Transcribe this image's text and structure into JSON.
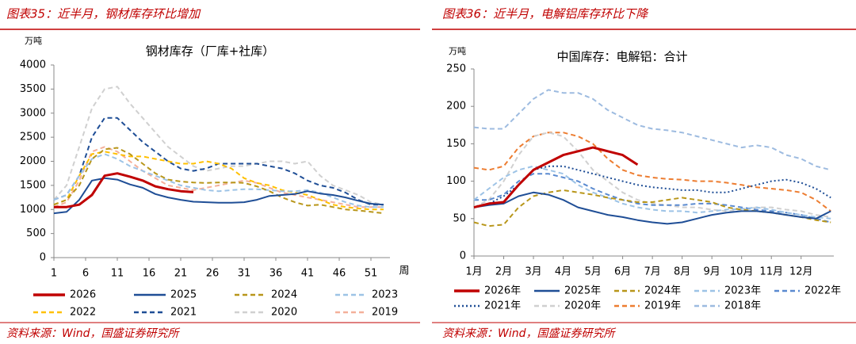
{
  "chart_data": [
    {
      "type": "line",
      "caption": "图表35：近半月，钢材库存环比增加",
      "source": "资料来源：Wind，国盛证券研究所",
      "title": "钢材库存（厂库+社库）",
      "y_label": "万吨",
      "x_label": "周",
      "grid": false,
      "xlim": [
        1,
        54
      ],
      "xticks": [
        1,
        6,
        11,
        16,
        21,
        26,
        31,
        36,
        41,
        46,
        51
      ],
      "ylim": [
        0,
        4000
      ],
      "yticks": [
        0,
        500,
        1000,
        1500,
        2000,
        2500,
        3000,
        3500,
        4000
      ],
      "x": [
        1,
        3,
        5,
        7,
        9,
        11,
        13,
        15,
        17,
        19,
        21,
        23,
        25,
        27,
        29,
        31,
        33,
        35,
        37,
        39,
        41,
        43,
        45,
        47,
        49,
        51,
        53
      ],
      "series": [
        {
          "name": "2026",
          "color": "#c00000",
          "width": 3,
          "dash": "solid",
          "values": [
            1050,
            1050,
            1100,
            1300,
            1700,
            1750,
            1680,
            1600,
            1480,
            1420,
            1380,
            1360,
            null,
            null,
            null,
            null,
            null,
            null,
            null,
            null,
            null,
            null,
            null,
            null,
            null,
            null,
            null
          ]
        },
        {
          "name": "2025",
          "color": "#1f4e96",
          "width": 2,
          "dash": "solid",
          "values": [
            920,
            950,
            1200,
            1600,
            1650,
            1620,
            1520,
            1450,
            1320,
            1250,
            1200,
            1160,
            1150,
            1140,
            1140,
            1150,
            1200,
            1280,
            1300,
            1320,
            1380,
            1330,
            1300,
            1250,
            1180,
            1120,
            1100
          ]
        },
        {
          "name": "2024",
          "color": "#b8961a",
          "width": 2,
          "dash": "dashed",
          "values": [
            1100,
            1200,
            1500,
            2050,
            2250,
            2280,
            2150,
            1950,
            1750,
            1620,
            1580,
            1560,
            1550,
            1560,
            1560,
            1550,
            1480,
            1380,
            1250,
            1150,
            1080,
            1100,
            1050,
            1000,
            980,
            950,
            920
          ]
        },
        {
          "name": "2023",
          "color": "#9dc3e6",
          "width": 2,
          "dash": "dashed",
          "values": [
            1200,
            1300,
            1700,
            2050,
            2150,
            2050,
            1900,
            1800,
            1700,
            1600,
            1500,
            1450,
            1400,
            1380,
            1400,
            1420,
            1420,
            1400,
            1380,
            1380,
            1400,
            1350,
            1250,
            1150,
            1080,
            1050,
            1050
          ]
        },
        {
          "name": "2022",
          "color": "#ffc000",
          "width": 2,
          "dash": "dashed",
          "values": [
            1100,
            1200,
            1700,
            2150,
            2200,
            2150,
            2100,
            2100,
            2050,
            2000,
            1950,
            1950,
            2000,
            1950,
            1850,
            1650,
            1550,
            1500,
            1400,
            1350,
            1300,
            1200,
            1100,
            1050,
            1020,
            1000,
            1000
          ]
        },
        {
          "name": "2021",
          "color": "#1f4e96",
          "width": 2,
          "dash": "dashed",
          "values": [
            1200,
            1300,
            1700,
            2500,
            2900,
            2900,
            2650,
            2400,
            2200,
            2000,
            1850,
            1800,
            1850,
            1950,
            1950,
            1950,
            1950,
            1900,
            1850,
            1750,
            1600,
            1500,
            1450,
            1350,
            1200,
            1100,
            1100
          ]
        },
        {
          "name": "2020",
          "color": "#d0d0d0",
          "width": 2,
          "dash": "dashed",
          "values": [
            1200,
            1500,
            2300,
            3100,
            3500,
            3550,
            3200,
            2900,
            2600,
            2300,
            2100,
            1900,
            1800,
            1850,
            1900,
            1900,
            1950,
            2000,
            2000,
            1950,
            2000,
            1700,
            1500,
            1400,
            1300,
            1150,
            1100
          ]
        },
        {
          "name": "2019",
          "color": "#f4b09a",
          "width": 2,
          "dash": "dashed",
          "values": [
            1050,
            1150,
            1600,
            2200,
            2300,
            2200,
            2000,
            1800,
            1650,
            1500,
            1450,
            1400,
            1450,
            1500,
            1550,
            1600,
            1550,
            1450,
            1350,
            1300,
            1250,
            1200,
            1150,
            1100,
            1050,
            1050,
            1050
          ]
        }
      ]
    },
    {
      "type": "line",
      "caption": "图表36：近半月，电解铝库存环比下降",
      "source": "资料来源：Wind，国盛证券研究所",
      "title": "中国库存：电解铝：合计",
      "y_label": "万吨",
      "grid": false,
      "xlim": [
        1,
        13.1
      ],
      "xticks": [
        {
          "value": 1,
          "label": "1月"
        },
        {
          "value": 2,
          "label": "2月"
        },
        {
          "value": 3,
          "label": "3月"
        },
        {
          "value": 4,
          "label": "4月"
        },
        {
          "value": 5,
          "label": "5月"
        },
        {
          "value": 6,
          "label": "6月"
        },
        {
          "value": 7,
          "label": "7月"
        },
        {
          "value": 8,
          "label": "8月"
        },
        {
          "value": 9,
          "label": "9月"
        },
        {
          "value": 10,
          "label": "10月"
        },
        {
          "value": 11,
          "label": "11月"
        },
        {
          "value": 12,
          "label": "12月"
        }
      ],
      "ylim": [
        0,
        250
      ],
      "yticks": [
        0,
        50,
        100,
        150,
        200,
        250
      ],
      "x": [
        1,
        1.5,
        2,
        2.5,
        3,
        3.5,
        4,
        4.5,
        5,
        5.5,
        6,
        6.5,
        7,
        7.5,
        8,
        8.5,
        9,
        9.5,
        10,
        10.5,
        11,
        11.5,
        12,
        12.5,
        13
      ],
      "series": [
        {
          "name": "2026年",
          "color": "#c00000",
          "width": 3,
          "dash": "solid",
          "values": [
            65,
            70,
            72,
            95,
            115,
            125,
            135,
            140,
            145,
            140,
            135,
            122,
            null,
            null,
            null,
            null,
            null,
            null,
            null,
            null,
            null,
            null,
            null,
            null,
            null
          ]
        },
        {
          "name": "2025年",
          "color": "#1f4e96",
          "width": 2,
          "dash": "solid",
          "values": [
            65,
            68,
            70,
            80,
            85,
            82,
            75,
            65,
            60,
            55,
            52,
            48,
            45,
            43,
            45,
            50,
            55,
            58,
            60,
            60,
            58,
            55,
            52,
            50,
            60
          ]
        },
        {
          "name": "2024年",
          "color": "#b8961a",
          "width": 2,
          "dash": "dashed",
          "values": [
            45,
            40,
            42,
            65,
            80,
            85,
            88,
            85,
            82,
            78,
            75,
            72,
            72,
            75,
            78,
            75,
            72,
            65,
            62,
            60,
            58,
            55,
            52,
            48,
            45
          ]
        },
        {
          "name": "2023年",
          "color": "#9dc3e6",
          "width": 2,
          "dash": "dashed",
          "values": [
            75,
            90,
            105,
            115,
            120,
            115,
            110,
            95,
            85,
            78,
            70,
            65,
            62,
            60,
            60,
            58,
            60,
            62,
            63,
            65,
            62,
            58,
            55,
            52,
            50
          ]
        },
        {
          "name": "2022年",
          "color": "#5a8ad0",
          "width": 2,
          "dash": "dashed",
          "values": [
            75,
            75,
            82,
            100,
            110,
            110,
            105,
            100,
            90,
            82,
            75,
            70,
            68,
            68,
            68,
            70,
            70,
            68,
            65,
            62,
            60,
            58,
            55,
            50,
            45
          ]
        },
        {
          "name": "2021年",
          "color": "#1f4e96",
          "width": 2,
          "dash": "dotted",
          "values": [
            65,
            70,
            80,
            95,
            115,
            120,
            120,
            115,
            110,
            105,
            100,
            95,
            92,
            90,
            88,
            88,
            85,
            85,
            90,
            95,
            100,
            102,
            98,
            90,
            78
          ]
        },
        {
          "name": "2020年",
          "color": "#d0d0d0",
          "width": 2,
          "dash": "dashed",
          "values": [
            65,
            75,
            100,
            135,
            160,
            165,
            160,
            140,
            115,
            100,
            85,
            75,
            70,
            68,
            65,
            65,
            62,
            60,
            62,
            65,
            65,
            62,
            60,
            55,
            52
          ]
        },
        {
          "name": "2019年",
          "color": "#ed7d31",
          "width": 2,
          "dash": "dashed",
          "values": [
            118,
            115,
            120,
            145,
            160,
            165,
            165,
            160,
            150,
            130,
            115,
            108,
            105,
            103,
            102,
            100,
            100,
            98,
            95,
            92,
            90,
            88,
            85,
            75,
            60
          ]
        },
        {
          "name": "2018年",
          "color": "#9dbbe0",
          "width": 2,
          "dash": "dashed",
          "values": [
            172,
            170,
            170,
            190,
            210,
            222,
            218,
            218,
            210,
            195,
            185,
            175,
            170,
            168,
            165,
            160,
            155,
            150,
            145,
            148,
            145,
            135,
            130,
            120,
            115
          ]
        }
      ]
    }
  ]
}
